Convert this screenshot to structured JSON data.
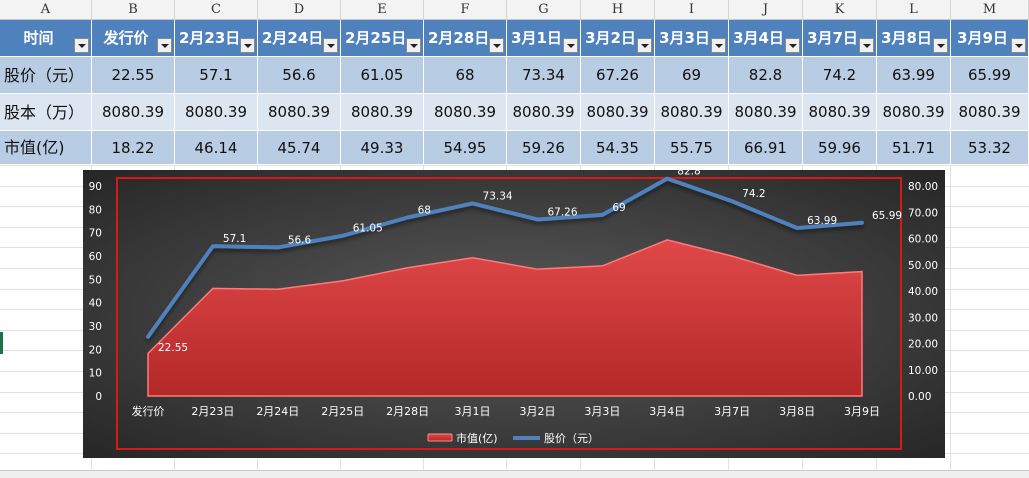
{
  "spreadsheet": {
    "column_letters": [
      "A",
      "B",
      "C",
      "D",
      "E",
      "F",
      "G",
      "H",
      "I",
      "J",
      "K",
      "L",
      "M"
    ],
    "header_row": [
      "时间",
      "发行价",
      "2月23日",
      "2月24日",
      "2月25日",
      "2月28日",
      "3月1日",
      "3月2日",
      "3月3日",
      "3月4日",
      "3月7日",
      "3月8日",
      "3月9日"
    ],
    "rows": [
      {
        "label": "股价（元）",
        "values": [
          "22.55",
          "57.1",
          "56.6",
          "61.05",
          "68",
          "73.34",
          "67.26",
          "69",
          "82.8",
          "74.2",
          "63.99",
          "65.99"
        ]
      },
      {
        "label": "股本（万）",
        "values": [
          "8080.39",
          "8080.39",
          "8080.39",
          "8080.39",
          "8080.39",
          "8080.39",
          "8080.39",
          "8080.39",
          "8080.39",
          "8080.39",
          "8080.39",
          "8080.39"
        ]
      },
      {
        "label": "市值(亿)",
        "values": [
          "18.22",
          "46.14",
          "45.74",
          "49.33",
          "54.95",
          "59.26",
          "54.35",
          "55.75",
          "66.91",
          "59.96",
          "51.71",
          "53.32"
        ]
      }
    ]
  },
  "chart_data": {
    "type": "area",
    "categories": [
      "发行价",
      "2月23日",
      "2月24日",
      "2月25日",
      "2月28日",
      "3月1日",
      "3月2日",
      "3月3日",
      "3月4日",
      "3月7日",
      "3月8日",
      "3月9日"
    ],
    "series": [
      {
        "name": "市值(亿)",
        "type": "area",
        "axis": "left",
        "values": [
          18.22,
          46.14,
          45.74,
          49.33,
          54.95,
          59.26,
          54.35,
          55.75,
          66.91,
          59.96,
          51.71,
          53.32
        ],
        "color": "#d63a3a"
      },
      {
        "name": "股价（元）",
        "type": "line",
        "axis": "right",
        "values": [
          22.55,
          57.1,
          56.6,
          61.05,
          68,
          73.34,
          67.26,
          69,
          82.8,
          74.2,
          63.99,
          65.99
        ],
        "color": "#4f81bd",
        "data_labels": [
          "22.55",
          "57.1",
          "56.6",
          "61.05",
          "68",
          "73.34",
          "67.26",
          "69",
          "82.8",
          "74.2",
          "63.99",
          "65.99"
        ]
      }
    ],
    "left_axis": {
      "ylim": [
        0,
        90
      ],
      "ticks": [
        "0",
        "10",
        "20",
        "30",
        "40",
        "50",
        "60",
        "70",
        "80",
        "90"
      ]
    },
    "right_axis": {
      "ylim": [
        0,
        80
      ],
      "ticks": [
        "0.00",
        "10.00",
        "20.00",
        "30.00",
        "40.00",
        "50.00",
        "60.00",
        "70.00",
        "80.00"
      ]
    },
    "legend": {
      "placement": "bottom",
      "entries": [
        "市值(亿)",
        "股价（元）"
      ]
    },
    "grid": false,
    "background": "#3a3a3a"
  }
}
